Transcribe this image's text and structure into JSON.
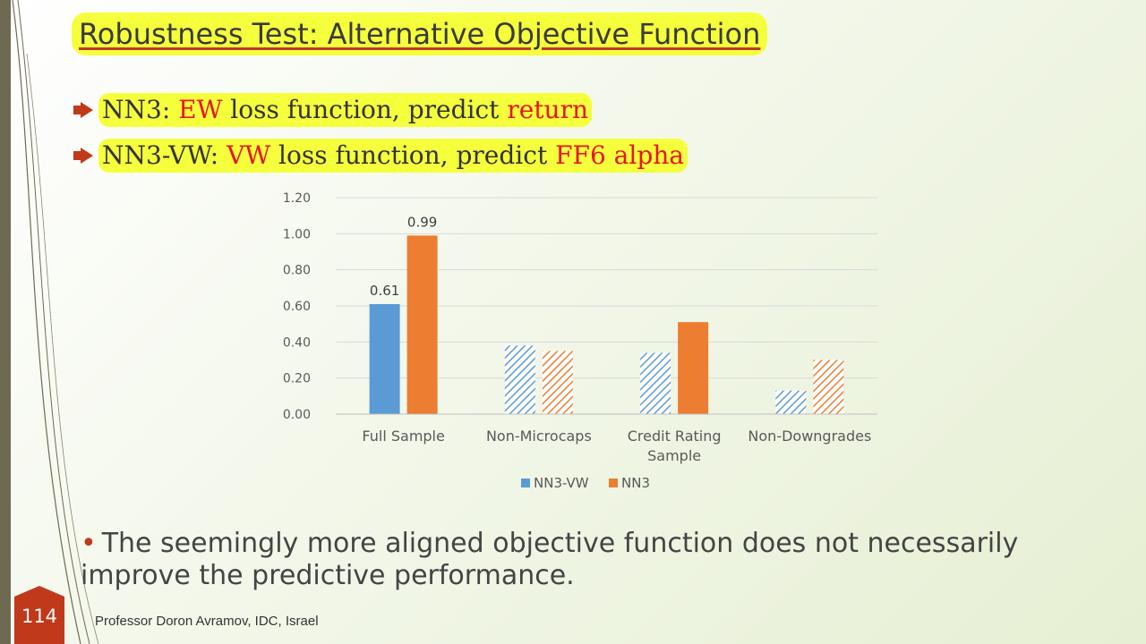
{
  "slide": {
    "title": "Robustness Test: Alternative Objective Function",
    "bullets": [
      {
        "parts": [
          "NN3: ",
          "EW",
          " loss function, predict ",
          "return"
        ]
      },
      {
        "parts": [
          "NN3-VW: ",
          "VW",
          " loss function, predict ",
          "FF6 alpha"
        ]
      }
    ],
    "body": "The seemingly more aligned objective function does not necessarily improve the predictive performance.",
    "slide_number": "114",
    "footer": "Professor Doron Avramov, IDC, Israel"
  },
  "colors": {
    "accent_red": "#e8151a",
    "highlight": "#f5ff3c",
    "nn3_vw": "#5b9bd5",
    "nn3": "#ed7d31",
    "brand_dark": "#c0391b"
  },
  "chart_data": {
    "type": "bar",
    "title": "",
    "xlabel": "",
    "ylabel": "",
    "categories": [
      "Full Sample",
      "Non-Microcaps",
      "Credit Rating Sample",
      "Non-Downgrades"
    ],
    "category_lines": [
      [
        "Full Sample"
      ],
      [
        "Non-Microcaps"
      ],
      [
        "Credit Rating",
        "Sample"
      ],
      [
        "Non-Downgrades"
      ]
    ],
    "series": [
      {
        "name": "NN3-VW",
        "values": [
          0.61,
          0.38,
          0.34,
          0.13
        ],
        "hatched": [
          false,
          true,
          true,
          true
        ],
        "labels": [
          "0.61",
          null,
          null,
          null
        ]
      },
      {
        "name": "NN3",
        "values": [
          0.99,
          0.35,
          0.51,
          0.3
        ],
        "hatched": [
          false,
          true,
          false,
          true
        ],
        "labels": [
          "0.99",
          null,
          null,
          null
        ]
      }
    ],
    "ylim": [
      0,
      1.2
    ],
    "yticks": [
      "0.00",
      "0.20",
      "0.40",
      "0.60",
      "0.80",
      "1.00",
      "1.20"
    ],
    "grid": true,
    "legend_position": "bottom"
  }
}
